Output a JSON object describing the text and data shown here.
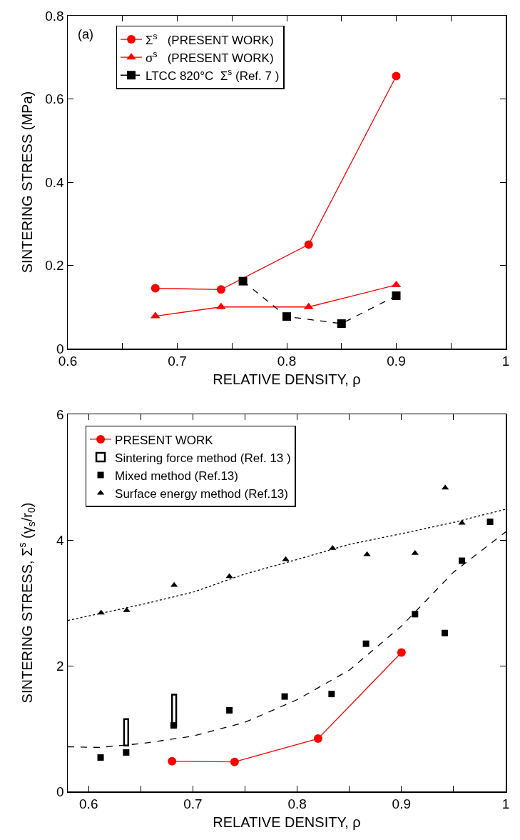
{
  "chart_data": [
    {
      "type": "line",
      "xlabel": "RELATIVE DENSITY, ρ",
      "ylabel": "SINTERING STRESS (MPa)",
      "annotations": [
        "(a)"
      ],
      "xlim": [
        0.6,
        1
      ],
      "xticks": [
        0.6,
        {
          "value": 0.65,
          "label": null
        },
        0.7,
        {
          "value": 0.75,
          "label": null
        },
        0.8,
        {
          "value": 0.85,
          "label": null
        },
        0.9,
        {
          "value": 0.95,
          "label": null
        },
        1
      ],
      "ylim": [
        0,
        0.8
      ],
      "yticks": [
        0,
        0.2,
        0.4,
        0.6,
        0.8
      ],
      "grid": false,
      "legend": "top left",
      "series": [
        {
          "name": "Σ$^{s}$   (PRESENT WORK)",
          "color": "#ff0000",
          "marker": "circle",
          "line_style": "solid",
          "x": [
            0.68,
            0.74,
            0.82,
            0.9
          ],
          "values": [
            0.145,
            0.142,
            0.25,
            0.655
          ]
        },
        {
          "name": "σ$^{s}$   (PRESENT WORK)",
          "color": "#ff0000",
          "marker": "triangle",
          "line_style": "solid",
          "x": [
            0.68,
            0.74,
            0.82,
            0.9
          ],
          "values": [
            0.078,
            0.1,
            0.1,
            0.153
          ]
        },
        {
          "name": "LTCC 820°C  Σ$^{s}$ (Ref. 7 )",
          "color": "#000000",
          "marker": "square",
          "line_style": "dashed",
          "x": [
            0.76,
            0.8,
            0.85,
            0.9
          ],
          "values": [
            0.162,
            0.077,
            0.06,
            0.127
          ]
        }
      ]
    },
    {
      "type": "scatter",
      "xlabel": "RELATIVE DENSITY, ρ",
      "ylabel": "SINTERING STRESS, Σ$^{s}$ (γ$_{s}$/r$_{0}$)",
      "xlim": [
        0.58,
        1
      ],
      "xticks": [
        0.6,
        {
          "value": 0.65,
          "label": null
        },
        0.7,
        {
          "value": 0.75,
          "label": null
        },
        0.8,
        {
          "value": 0.85,
          "label": null
        },
        0.9,
        {
          "value": 0.95,
          "label": null
        },
        1
      ],
      "ylim": [
        0,
        6
      ],
      "yticks": [
        0,
        2,
        4,
        6
      ],
      "grid": false,
      "legend": "top left",
      "series": [
        {
          "name": "PRESENT WORK",
          "type": "line",
          "color": "#ff0000",
          "marker": "circle",
          "line_style": "solid",
          "x": [
            0.68,
            0.74,
            0.82,
            0.9
          ],
          "values": [
            0.48,
            0.47,
            0.84,
            2.21
          ]
        },
        {
          "name": "Sintering force method (Ref. 13 )",
          "type": "bar",
          "color": "#000000",
          "x": [
            0.636,
            0.682
          ],
          "base": [
            0.73,
            1.03
          ],
          "values": [
            0.42,
            0.51
          ]
        },
        {
          "name": "Mixed method (Ref.13)",
          "color": "#000000",
          "marker": "square",
          "x": [
            0.6115,
            0.636,
            0.6815,
            0.735,
            0.788,
            0.833,
            0.866,
            0.913,
            0.9415,
            0.958,
            0.985
          ],
          "values": [
            0.54,
            0.62,
            1.05,
            1.29,
            1.51,
            1.55,
            2.35,
            2.82,
            2.52,
            3.67,
            4.29
          ]
        },
        {
          "name": "Surface energy method (Ref.13)",
          "color": "#000000",
          "marker": "triangle",
          "x": [
            0.612,
            0.6365,
            0.682,
            0.735,
            0.789,
            0.834,
            0.867,
            0.913,
            0.942,
            0.958
          ],
          "values": [
            2.84,
            2.88,
            3.28,
            3.42,
            3.69,
            3.87,
            3.77,
            3.79,
            4.83,
            4.27
          ]
        },
        {
          "type": "line",
          "color": "#000000",
          "marker": "none",
          "line_style": "dashed",
          "x": [
            0.58,
            0.61,
            0.65,
            0.7,
            0.75,
            0.8,
            0.85,
            0.9,
            0.95,
            1.0
          ],
          "values": [
            0.71,
            0.7,
            0.76,
            0.88,
            1.1,
            1.46,
            1.93,
            2.63,
            3.49,
            4.13
          ]
        },
        {
          "type": "line",
          "color": "#000000",
          "marker": "none",
          "line_style": "dotted",
          "x": [
            0.58,
            0.65,
            0.7,
            0.75,
            0.8,
            0.85,
            0.9,
            0.95,
            1.0
          ],
          "values": [
            2.72,
            2.97,
            3.17,
            3.46,
            3.69,
            3.93,
            4.1,
            4.28,
            4.49
          ]
        }
      ]
    }
  ]
}
